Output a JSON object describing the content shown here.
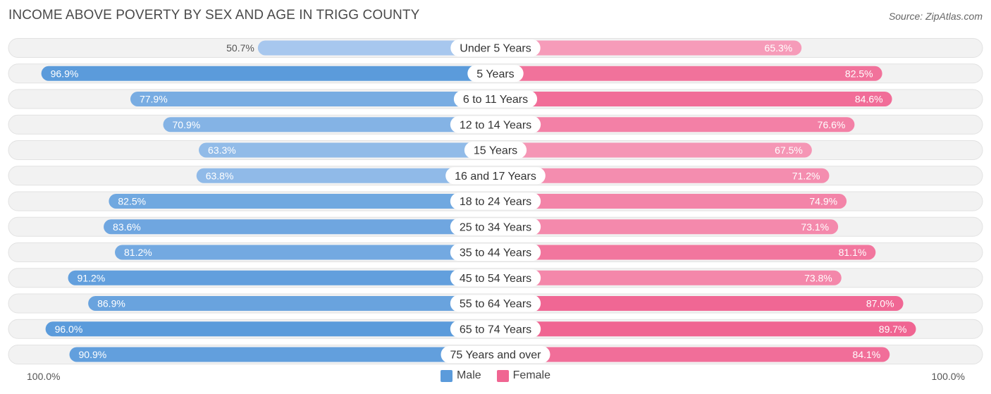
{
  "title": "INCOME ABOVE POVERTY BY SEX AND AGE IN TRIGG COUNTY",
  "source": "Source: ZipAtlas.com",
  "axis": {
    "left_label": "100.0%",
    "right_label": "100.0%"
  },
  "legend": {
    "male": "Male",
    "female": "Female"
  },
  "colors": {
    "male_strong": "#5b9bdb",
    "male_light": "#a8c8ee",
    "female_strong": "#f06592",
    "female_light": "#f7a8c2",
    "track": "#efefef"
  },
  "chart_data": {
    "type": "bar",
    "orientation": "diverging-horizontal",
    "title": "INCOME ABOVE POVERTY BY SEX AND AGE IN TRIGG COUNTY",
    "categories": [
      "Under 5 Years",
      "5 Years",
      "6 to 11 Years",
      "12 to 14 Years",
      "15 Years",
      "16 and 17 Years",
      "18 to 24 Years",
      "25 to 34 Years",
      "35 to 44 Years",
      "45 to 54 Years",
      "55 to 64 Years",
      "65 to 74 Years",
      "75 Years and over"
    ],
    "series": [
      {
        "name": "Male",
        "values": [
          50.7,
          96.9,
          77.9,
          70.9,
          63.3,
          63.8,
          82.5,
          83.6,
          81.2,
          91.2,
          86.9,
          96.0,
          90.9
        ]
      },
      {
        "name": "Female",
        "values": [
          65.3,
          82.5,
          84.6,
          76.6,
          67.5,
          71.2,
          74.9,
          73.1,
          81.1,
          73.8,
          87.0,
          89.7,
          84.1
        ]
      }
    ],
    "value_labels": {
      "male": [
        "50.7%",
        "96.9%",
        "77.9%",
        "70.9%",
        "63.3%",
        "63.8%",
        "82.5%",
        "83.6%",
        "81.2%",
        "91.2%",
        "86.9%",
        "96.0%",
        "90.9%"
      ],
      "female": [
        "65.3%",
        "82.5%",
        "84.6%",
        "76.6%",
        "67.5%",
        "71.2%",
        "74.9%",
        "73.1%",
        "81.1%",
        "73.8%",
        "87.0%",
        "89.7%",
        "84.1%"
      ]
    },
    "xlim": [
      0,
      100
    ],
    "legend_position": "bottom-center"
  }
}
